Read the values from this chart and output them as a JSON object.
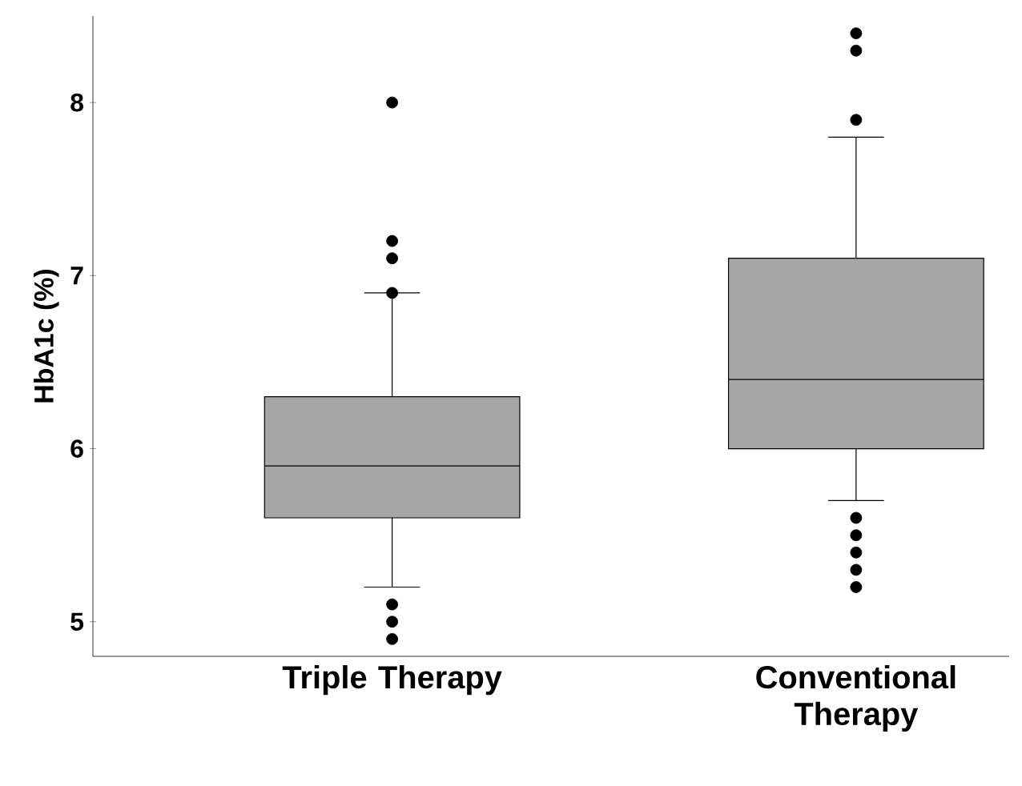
{
  "chart_data": {
    "type": "box",
    "ylabel": "HbA1c (%)",
    "categories": [
      "Triple Therapy",
      "Conventional Therapy"
    ],
    "color": "#a6a6a6",
    "boxes": [
      {
        "low": 5.2,
        "q1": 5.6,
        "median": 5.9,
        "q3": 6.3,
        "high": 6.9,
        "outliers": [
          8.0,
          7.2,
          7.1,
          6.9,
          5.1,
          5.0,
          4.9
        ]
      },
      {
        "low": 5.7,
        "q1": 6.0,
        "median": 6.4,
        "q3": 7.1,
        "high": 7.8,
        "outliers": [
          8.4,
          8.3,
          7.9,
          5.6,
          5.5,
          5.4,
          5.3,
          5.2
        ]
      }
    ],
    "ylim": [
      4.8,
      8.5
    ],
    "yticks": [
      5,
      6,
      7,
      8
    ]
  }
}
